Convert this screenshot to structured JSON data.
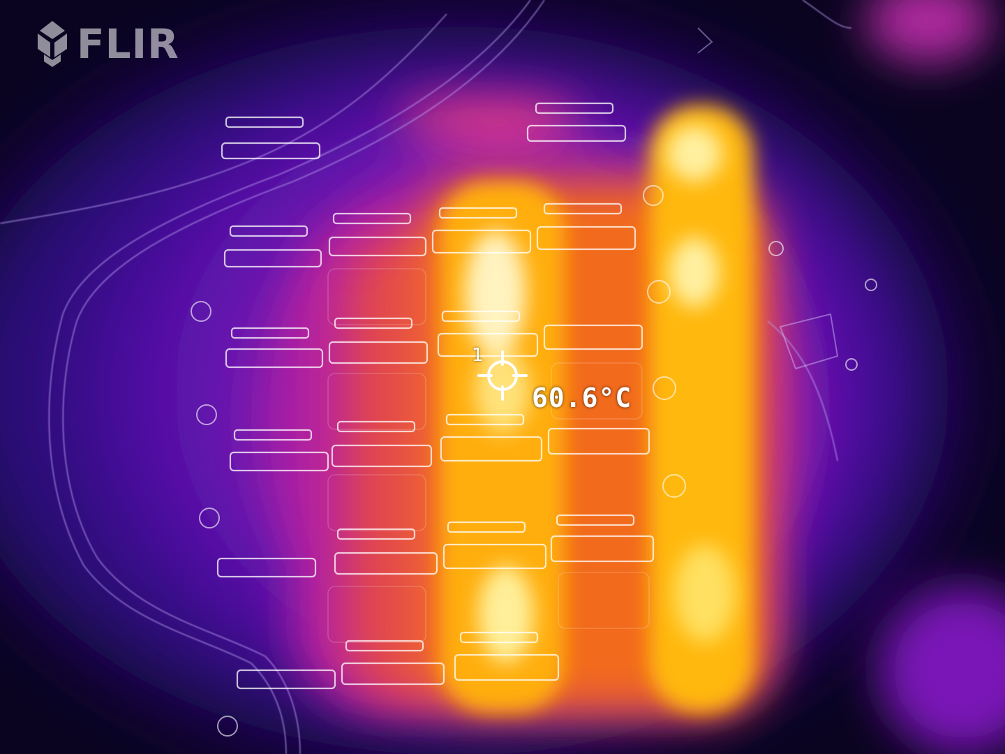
{
  "image": {
    "kind": "thermal-camera-frame",
    "palette": "iron",
    "colors": {
      "cold": "#0a0420",
      "cool": "#3a0c8a",
      "mid_cool": "#7a18b8",
      "warm": "#d8309a",
      "hot": "#f47010",
      "hotter": "#ffb000",
      "hottest": "#fff8d0"
    }
  },
  "brand": {
    "logo_text": "FLIR",
    "logo_icon": "flir-diamond-logo"
  },
  "spot_meter": {
    "index": "1",
    "icon": "crosshair-icon",
    "temperature": "60.6°C",
    "color": "#ffffff"
  }
}
